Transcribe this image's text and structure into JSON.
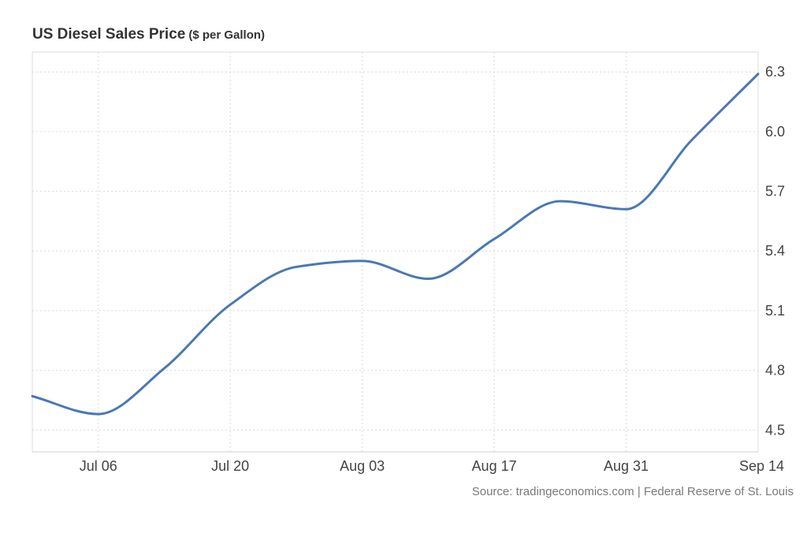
{
  "chart_data": {
    "type": "line",
    "title": "US Diesel Sales Price",
    "subtitle": "($ per Gallon)",
    "source": "Source: tradingeconomics.com | Federal Reserve of St. Louis",
    "x_tick_labels": [
      "Jul 06",
      "Jul 20",
      "Aug 03",
      "Aug 17",
      "Aug 31",
      "Sep 14"
    ],
    "y_tick_labels": [
      "4.5",
      "4.8",
      "5.1",
      "5.4",
      "5.7",
      "6.0",
      "6.3"
    ],
    "y_ticks": [
      4.5,
      4.8,
      5.1,
      5.4,
      5.7,
      6.0,
      6.3
    ],
    "x_ticks": [
      "2022-07-06",
      "2022-07-20",
      "2022-08-03",
      "2022-08-17",
      "2022-08-31",
      "2022-09-14"
    ],
    "xlim": [
      "2022-06-29",
      "2022-09-14"
    ],
    "ylim": [
      4.39,
      6.4
    ],
    "grid": true,
    "line_color": "#4a78b3",
    "series": [
      {
        "x": [
          "2022-06-29",
          "2022-07-06",
          "2022-07-13",
          "2022-07-20",
          "2022-07-27",
          "2022-08-03",
          "2022-08-10",
          "2022-08-17",
          "2022-08-24",
          "2022-08-31",
          "2022-09-07",
          "2022-09-14"
        ],
        "values": [
          4.67,
          4.58,
          4.81,
          5.13,
          5.32,
          5.35,
          5.26,
          5.46,
          5.65,
          5.61,
          5.96,
          6.29
        ]
      }
    ]
  }
}
